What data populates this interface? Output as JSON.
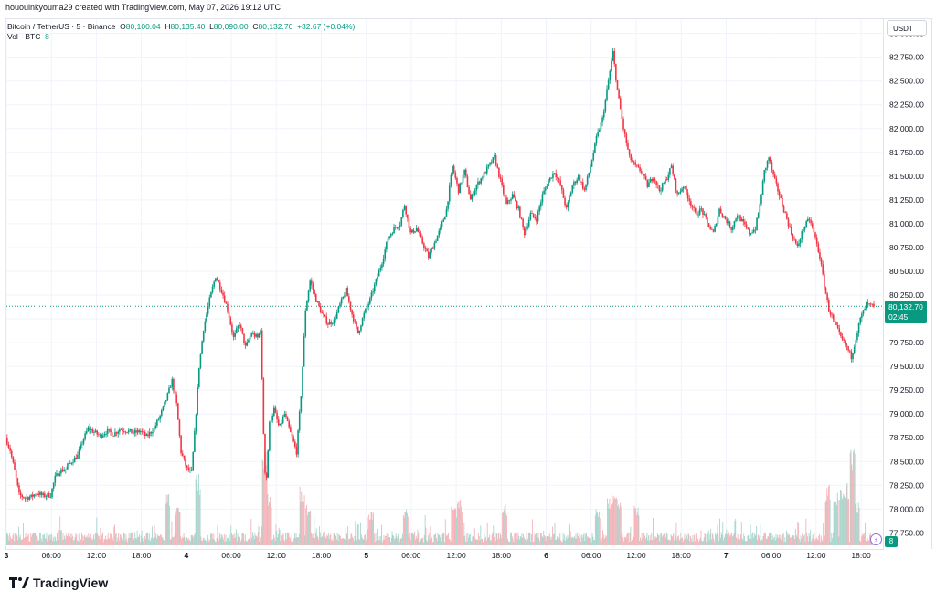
{
  "header": {
    "credit": "hououinkyouma29 created with TradingView.com, May 07, 2026 19:12 UTC"
  },
  "legend": {
    "symbol": "Bitcoin / TetherUS · 5 · Binance",
    "o_label": "O",
    "o_value": "80,100.04",
    "h_label": "H",
    "h_value": "80,135.40",
    "l_label": "L",
    "l_value": "80,090.00",
    "c_label": "C",
    "c_value": "80,132.70",
    "change": "+32.67 (+0.04%)",
    "volume_label": "Vol · BTC",
    "volume_value": "8"
  },
  "axis": {
    "currency": "USDT",
    "last_price": "80,132.70",
    "countdown": "02:45",
    "volume_tag": "8"
  },
  "brand": {
    "name": "TradingView"
  },
  "colors": {
    "up": "#089981",
    "down": "#f23645",
    "vol_up": "#a5d6cd",
    "vol_down": "#f7b3b9",
    "grid": "#f0f3fa",
    "last_line": "#089981"
  },
  "chart_data": {
    "type": "candlestick",
    "interval": "5m",
    "y_ticks": [
      77750,
      78000,
      78250,
      78500,
      78750,
      79000,
      79250,
      79500,
      79750,
      80000,
      80250,
      80500,
      80750,
      81000,
      81250,
      81500,
      81750,
      82000,
      82250,
      82500,
      82750,
      83000
    ],
    "y_tick_labels": [
      "77,750.00",
      "78,000.00",
      "78,250.00",
      "78,500.00",
      "78,750.00",
      "79,000.00",
      "79,250.00",
      "79,500.00",
      "79,750.00",
      "80,000.00",
      "80,250.00",
      "80,500.00",
      "80,750.00",
      "81,000.00",
      "81,250.00",
      "81,500.00",
      "81,750.00",
      "82,000.00",
      "82,250.00",
      "82,500.00",
      "82,750.00",
      "83,000.00"
    ],
    "ylim": [
      77600,
      83150
    ],
    "x_ticks": [
      "3",
      "06:00",
      "12:00",
      "18:00",
      "4",
      "06:00",
      "12:00",
      "18:00",
      "5",
      "06:00",
      "12:00",
      "18:00",
      "6",
      "06:00",
      "12:00",
      "18:00",
      "7",
      "06:00",
      "12:00",
      "18:00"
    ],
    "x_tick_hours": [
      0,
      6,
      12,
      18,
      24,
      30,
      36,
      42,
      48,
      54,
      60,
      66,
      72,
      78,
      84,
      90,
      96,
      102,
      108,
      114
    ],
    "x_range_hours": [
      0,
      115.7
    ],
    "last_price": 80132.7,
    "price_path": [
      [
        0,
        78750
      ],
      [
        0.6,
        78620
      ],
      [
        1.2,
        78400
      ],
      [
        1.8,
        78150
      ],
      [
        2.6,
        78120
      ],
      [
        3.4,
        78130
      ],
      [
        4.2,
        78170
      ],
      [
        5,
        78140
      ],
      [
        6,
        78150
      ],
      [
        6.6,
        78330
      ],
      [
        7.2,
        78400
      ],
      [
        8,
        78420
      ],
      [
        8.8,
        78500
      ],
      [
        9.6,
        78560
      ],
      [
        10.2,
        78700
      ],
      [
        11,
        78850
      ],
      [
        12,
        78800
      ],
      [
        12.6,
        78770
      ],
      [
        13.5,
        78820
      ],
      [
        14.4,
        78790
      ],
      [
        15.2,
        78840
      ],
      [
        16,
        78830
      ],
      [
        17,
        78800
      ],
      [
        18,
        78820
      ],
      [
        18.8,
        78760
      ],
      [
        19.8,
        78850
      ],
      [
        20.6,
        78980
      ],
      [
        21.4,
        79150
      ],
      [
        22.2,
        79350
      ],
      [
        22.8,
        79100
      ],
      [
        23.4,
        78600
      ],
      [
        24.2,
        78420
      ],
      [
        24.8,
        78380
      ],
      [
        25.3,
        78900
      ],
      [
        25.8,
        79500
      ],
      [
        26.4,
        79900
      ],
      [
        27.2,
        80200
      ],
      [
        28,
        80450
      ],
      [
        28.8,
        80300
      ],
      [
        29.6,
        80100
      ],
      [
        30.4,
        79800
      ],
      [
        31.2,
        79950
      ],
      [
        32,
        79700
      ],
      [
        32.8,
        79850
      ],
      [
        33.6,
        79800
      ],
      [
        34,
        79900
      ],
      [
        34.4,
        78800
      ],
      [
        34.7,
        78200
      ],
      [
        35.2,
        78900
      ],
      [
        35.8,
        79050
      ],
      [
        36.5,
        78850
      ],
      [
        37.2,
        79000
      ],
      [
        38,
        78800
      ],
      [
        38.8,
        78600
      ],
      [
        39.4,
        79200
      ],
      [
        40,
        80100
      ],
      [
        40.6,
        80400
      ],
      [
        41.4,
        80200
      ],
      [
        42.2,
        80050
      ],
      [
        43,
        79950
      ],
      [
        43.8,
        79980
      ],
      [
        44.6,
        80150
      ],
      [
        45.4,
        80300
      ],
      [
        46.2,
        80050
      ],
      [
        47,
        79850
      ],
      [
        47.8,
        80050
      ],
      [
        48.6,
        80200
      ],
      [
        49.4,
        80400
      ],
      [
        50.2,
        80600
      ],
      [
        51,
        80850
      ],
      [
        51.8,
        80950
      ],
      [
        52.6,
        81000
      ],
      [
        53.2,
        81200
      ],
      [
        54,
        80900
      ],
      [
        54.8,
        80950
      ],
      [
        55.6,
        80800
      ],
      [
        56.4,
        80650
      ],
      [
        57.2,
        80800
      ],
      [
        58,
        80950
      ],
      [
        58.8,
        81150
      ],
      [
        59.6,
        81600
      ],
      [
        60.4,
        81350
      ],
      [
        61.2,
        81550
      ],
      [
        62,
        81250
      ],
      [
        62.8,
        81400
      ],
      [
        63.6,
        81500
      ],
      [
        64.4,
        81600
      ],
      [
        65.2,
        81700
      ],
      [
        66,
        81450
      ],
      [
        66.8,
        81200
      ],
      [
        67.6,
        81300
      ],
      [
        68.4,
        81150
      ],
      [
        69.2,
        80900
      ],
      [
        70,
        81100
      ],
      [
        70.8,
        81050
      ],
      [
        71.6,
        81300
      ],
      [
        72.4,
        81450
      ],
      [
        73.2,
        81550
      ],
      [
        74,
        81400
      ],
      [
        74.8,
        81150
      ],
      [
        75.6,
        81400
      ],
      [
        76.4,
        81500
      ],
      [
        77.2,
        81350
      ],
      [
        78,
        81600
      ],
      [
        78.8,
        81900
      ],
      [
        79.6,
        82100
      ],
      [
        80.4,
        82500
      ],
      [
        81,
        82800
      ],
      [
        81.6,
        82400
      ],
      [
        82.4,
        82000
      ],
      [
        83.2,
        81700
      ],
      [
        84,
        81600
      ],
      [
        84.8,
        81550
      ],
      [
        85.6,
        81400
      ],
      [
        86.4,
        81500
      ],
      [
        87.2,
        81350
      ],
      [
        88,
        81450
      ],
      [
        88.8,
        81600
      ],
      [
        89.6,
        81300
      ],
      [
        90.4,
        81400
      ],
      [
        91.2,
        81250
      ],
      [
        92,
        81100
      ],
      [
        92.8,
        81150
      ],
      [
        93.6,
        81000
      ],
      [
        94.4,
        80900
      ],
      [
        95.2,
        81150
      ],
      [
        96,
        81050
      ],
      [
        96.8,
        80950
      ],
      [
        97.6,
        81100
      ],
      [
        98.4,
        81000
      ],
      [
        99.2,
        80900
      ],
      [
        100,
        80950
      ],
      [
        100.6,
        81200
      ],
      [
        101.2,
        81550
      ],
      [
        101.8,
        81700
      ],
      [
        102.4,
        81500
      ],
      [
        103.2,
        81300
      ],
      [
        104,
        81100
      ],
      [
        104.8,
        80900
      ],
      [
        105.6,
        80750
      ],
      [
        106.4,
        80950
      ],
      [
        107.2,
        81050
      ],
      [
        108,
        80850
      ],
      [
        108.6,
        80650
      ],
      [
        109.2,
        80350
      ],
      [
        109.8,
        80100
      ],
      [
        110.6,
        79950
      ],
      [
        111.4,
        79800
      ],
      [
        112.2,
        79700
      ],
      [
        112.8,
        79600
      ],
      [
        113.4,
        79800
      ],
      [
        114,
        80000
      ],
      [
        114.8,
        80150
      ],
      [
        115.7,
        80132.7
      ]
    ],
    "volume_max_btc": 1000,
    "volume_spikes": [
      [
        21.4,
        470
      ],
      [
        22.8,
        380
      ],
      [
        25.5,
        650
      ],
      [
        34.4,
        900
      ],
      [
        35,
        480
      ],
      [
        39.4,
        560
      ],
      [
        40.2,
        380
      ],
      [
        48.6,
        320
      ],
      [
        53.2,
        330
      ],
      [
        59.6,
        360
      ],
      [
        60.4,
        420
      ],
      [
        66.4,
        380
      ],
      [
        78.8,
        350
      ],
      [
        80.4,
        430
      ],
      [
        81,
        540
      ],
      [
        81.6,
        450
      ],
      [
        84,
        380
      ],
      [
        109.5,
        560
      ],
      [
        110.6,
        480
      ],
      [
        111.4,
        570
      ],
      [
        112,
        580
      ],
      [
        112.8,
        900
      ],
      [
        113.4,
        420
      ]
    ]
  }
}
